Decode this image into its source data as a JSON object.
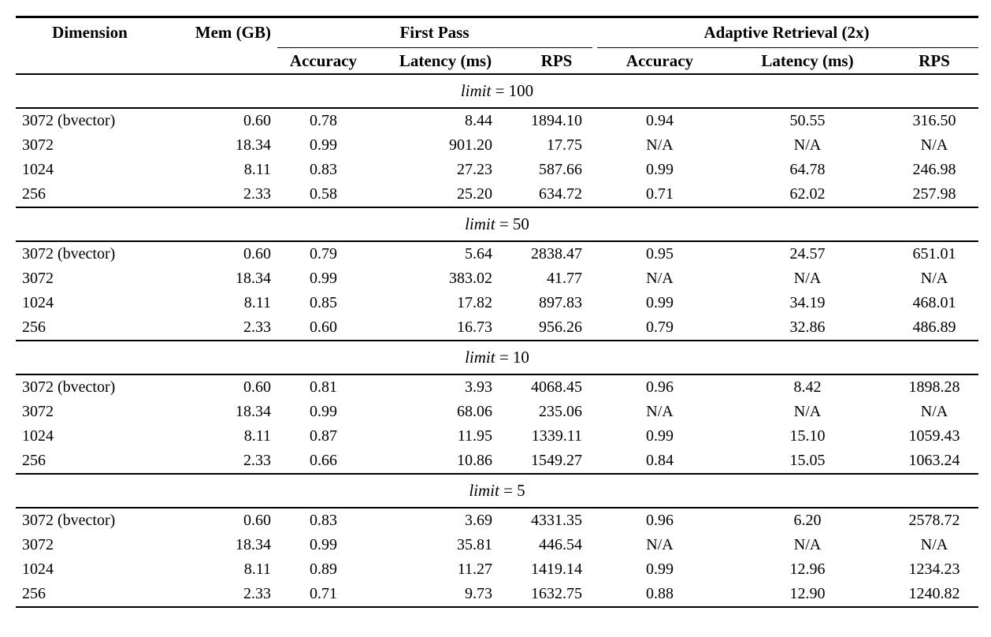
{
  "colors": {
    "text": "#000000",
    "background": "#ffffff",
    "rule": "#000000"
  },
  "table": {
    "headers": {
      "dimension": "Dimension",
      "mem": "Mem (GB)",
      "first_pass_group": "First Pass",
      "adaptive_group": "Adaptive Retrieval (2x)",
      "sub": [
        "Accuracy",
        "Latency (ms)",
        "RPS",
        "Accuracy",
        "Latency (ms)",
        "RPS"
      ]
    },
    "sections": [
      {
        "limit_word": "limit",
        "limit_eq": " = 100",
        "rows": [
          {
            "cells": [
              "3072 (bvector)",
              "0.60",
              "0.78",
              "8.44",
              "1894.10",
              "0.94",
              "50.55",
              "316.50"
            ]
          },
          {
            "cells": [
              "3072",
              "18.34",
              "0.99",
              "901.20",
              "17.75",
              "N/A",
              "N/A",
              "N/A"
            ]
          },
          {
            "cells": [
              "1024",
              "8.11",
              "0.83",
              "27.23",
              "587.66",
              "0.99",
              "64.78",
              "246.98"
            ]
          },
          {
            "cells": [
              "256",
              "2.33",
              "0.58",
              "25.20",
              "634.72",
              "0.71",
              "62.02",
              "257.98"
            ]
          }
        ]
      },
      {
        "limit_word": "limit",
        "limit_eq": " = 50",
        "rows": [
          {
            "cells": [
              "3072 (bvector)",
              "0.60",
              "0.79",
              "5.64",
              "2838.47",
              "0.95",
              "24.57",
              "651.01"
            ]
          },
          {
            "cells": [
              "3072",
              "18.34",
              "0.99",
              "383.02",
              "41.77",
              "N/A",
              "N/A",
              "N/A"
            ]
          },
          {
            "cells": [
              "1024",
              "8.11",
              "0.85",
              "17.82",
              "897.83",
              "0.99",
              "34.19",
              "468.01"
            ]
          },
          {
            "cells": [
              "256",
              "2.33",
              "0.60",
              "16.73",
              "956.26",
              "0.79",
              "32.86",
              "486.89"
            ]
          }
        ]
      },
      {
        "limit_word": "limit",
        "limit_eq": " = 10",
        "rows": [
          {
            "cells": [
              "3072 (bvector)",
              "0.60",
              "0.81",
              "3.93",
              "4068.45",
              "0.96",
              "8.42",
              "1898.28"
            ]
          },
          {
            "cells": [
              "3072",
              "18.34",
              "0.99",
              "68.06",
              "235.06",
              "N/A",
              "N/A",
              "N/A"
            ]
          },
          {
            "cells": [
              "1024",
              "8.11",
              "0.87",
              "11.95",
              "1339.11",
              "0.99",
              "15.10",
              "1059.43"
            ]
          },
          {
            "cells": [
              "256",
              "2.33",
              "0.66",
              "10.86",
              "1549.27",
              "0.84",
              "15.05",
              "1063.24"
            ]
          }
        ]
      },
      {
        "limit_word": "limit",
        "limit_eq": " = 5",
        "rows": [
          {
            "cells": [
              "3072 (bvector)",
              "0.60",
              "0.83",
              "3.69",
              "4331.35",
              "0.96",
              "6.20",
              "2578.72"
            ]
          },
          {
            "cells": [
              "3072",
              "18.34",
              "0.99",
              "35.81",
              "446.54",
              "N/A",
              "N/A",
              "N/A"
            ]
          },
          {
            "cells": [
              "1024",
              "8.11",
              "0.89",
              "11.27",
              "1419.14",
              "0.99",
              "12.96",
              "1234.23"
            ]
          },
          {
            "cells": [
              "256",
              "2.33",
              "0.71",
              "9.73",
              "1632.75",
              "0.88",
              "12.90",
              "1240.82"
            ]
          }
        ]
      }
    ]
  }
}
